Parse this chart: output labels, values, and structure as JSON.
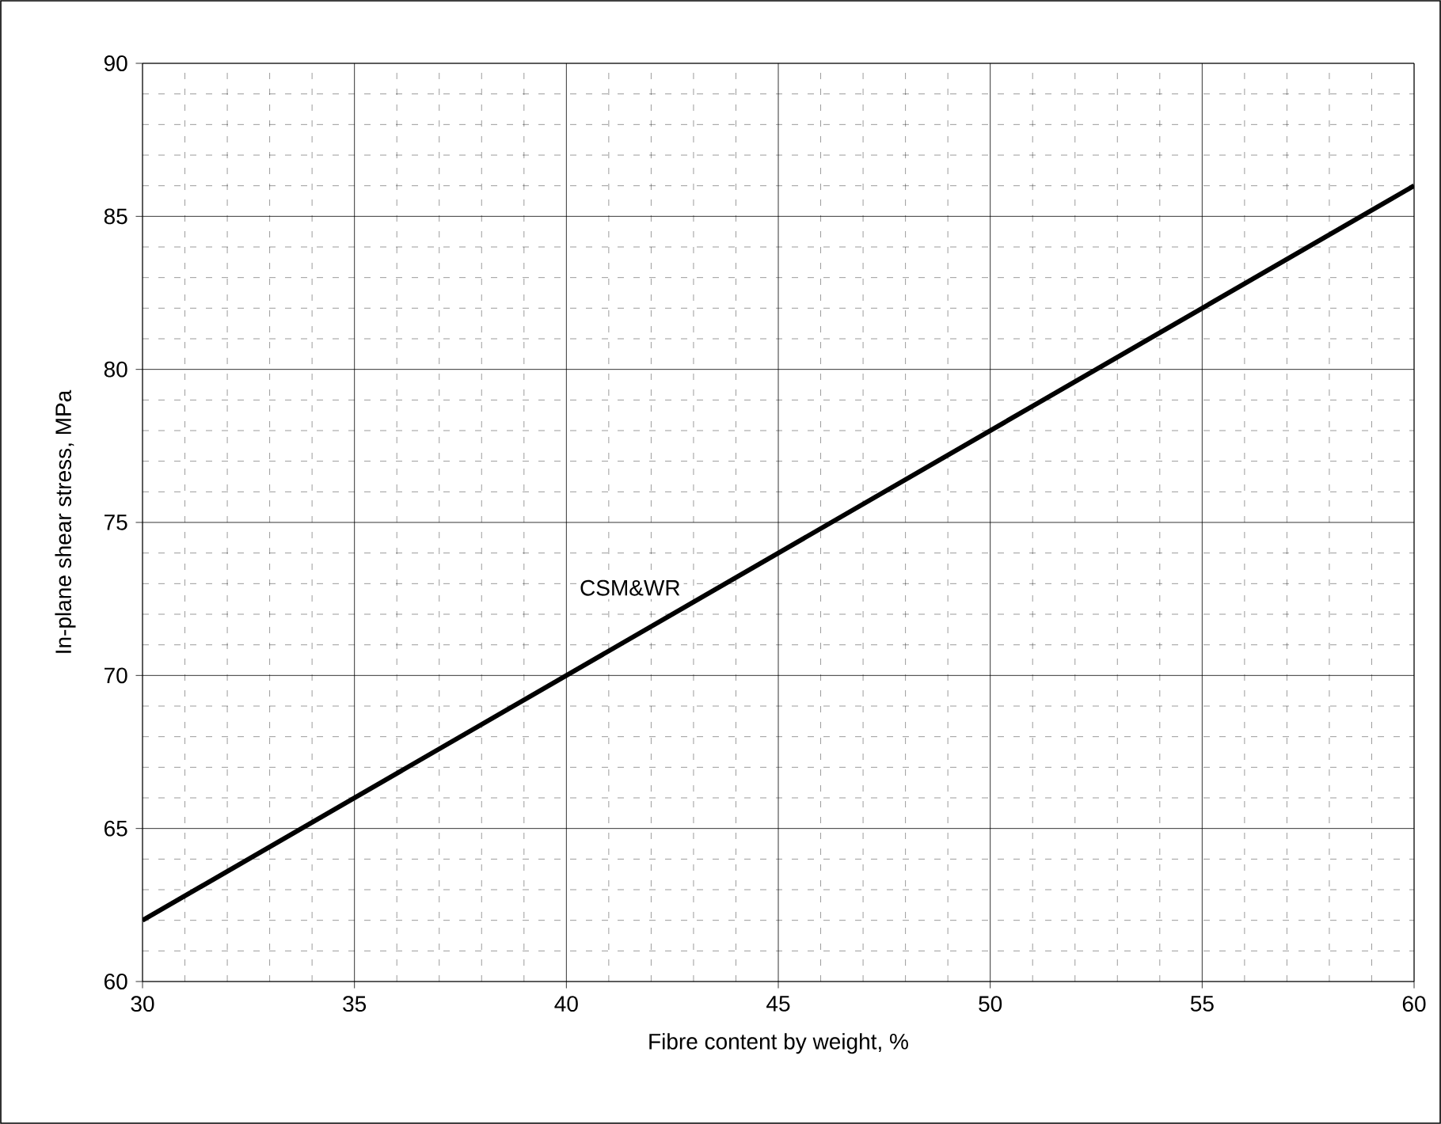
{
  "chart_data": {
    "type": "line",
    "xlabel": "Fibre content by weight, %",
    "ylabel": "In-plane shear stress, MPa",
    "x": [
      30,
      60
    ],
    "series": [
      {
        "name": "CSM&WR",
        "color": "#000000",
        "values": [
          62,
          86
        ]
      }
    ],
    "xlim": [
      30,
      60
    ],
    "xticks": [
      30,
      35,
      40,
      45,
      50,
      55,
      60
    ],
    "ylim": [
      60,
      90
    ],
    "yticks": [
      60,
      65,
      70,
      75,
      80,
      85,
      90
    ],
    "grid": true,
    "legend": false,
    "marker": "none",
    "line_style": "solid"
  }
}
